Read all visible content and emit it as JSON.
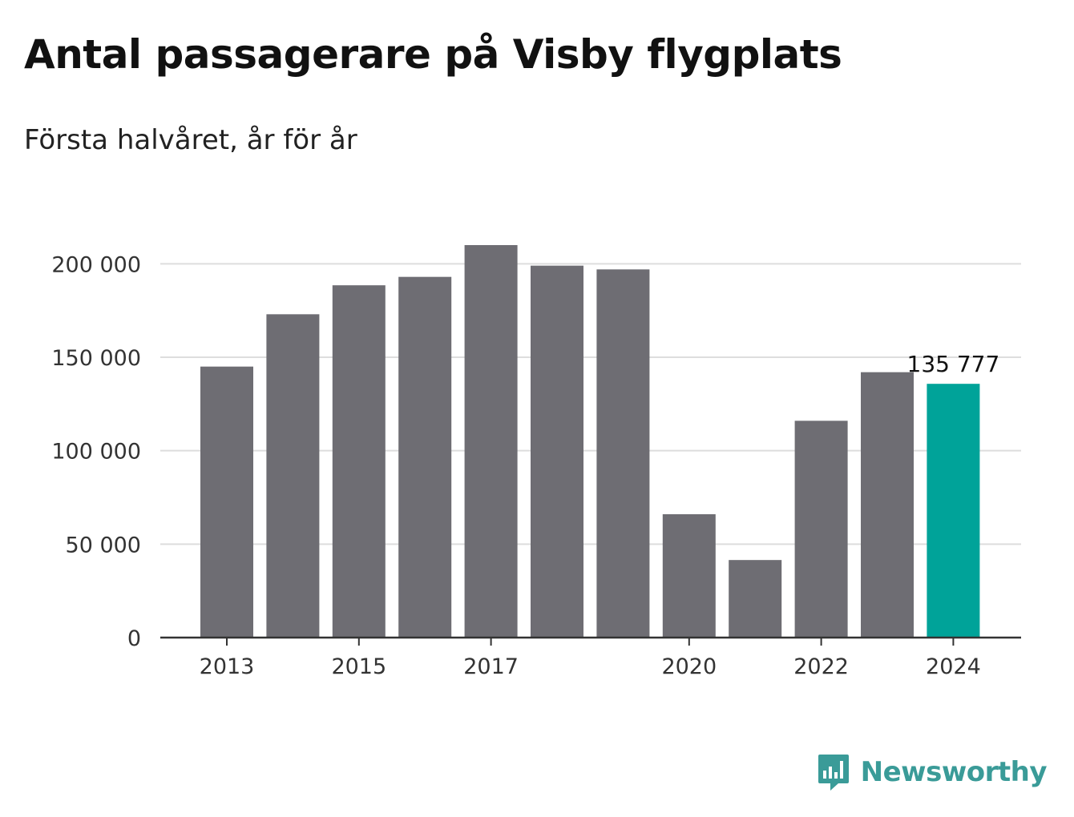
{
  "title": "Antal passagerare på Visby flygplats",
  "subtitle": "Första halvåret, år för år",
  "brand": {
    "name": "Newsworthy",
    "icon": "bar-chart-speech-bubble-icon"
  },
  "colors": {
    "bar": "#6e6d73",
    "highlight": "#00a399",
    "grid": "#dddddd",
    "axis": "#333333"
  },
  "chart_data": {
    "type": "bar",
    "title": "Antal passagerare på Visby flygplats",
    "subtitle": "Första halvåret, år för år",
    "categories": [
      "2013",
      "2014",
      "2015",
      "2016",
      "2017",
      "2018",
      "2019",
      "2020",
      "2021",
      "2022",
      "2023",
      "2024"
    ],
    "values": [
      145000,
      173000,
      188500,
      193000,
      210000,
      199000,
      197000,
      66000,
      41500,
      116000,
      142000,
      135777
    ],
    "highlight_index": 11,
    "data_labels": [
      {
        "category": "2024",
        "text": "135 777"
      }
    ],
    "x_tick_labels": [
      "2013",
      "2015",
      "2017",
      "2020",
      "2022",
      "2024"
    ],
    "y_ticks": [
      0,
      50000,
      100000,
      150000,
      200000
    ],
    "y_tick_labels": [
      "0",
      "50 000",
      "100 000",
      "150 000",
      "200 000"
    ],
    "ylim": [
      0,
      210000
    ],
    "grid": true,
    "xlabel": "",
    "ylabel": ""
  }
}
